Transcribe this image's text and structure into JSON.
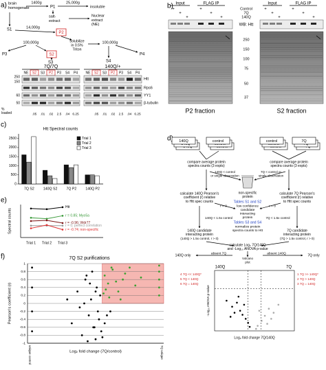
{
  "panel_a": {
    "label": "a)",
    "scheme": {
      "brain": [
        "brain",
        "homogenate"
      ],
      "spin1": "1400g",
      "p1": "P1",
      "spin2": "25,000g",
      "salt": [
        "salt-",
        "extract"
      ],
      "insoluble": "insoluble",
      "nuclear": [
        "Nuclear",
        "extract",
        "(NE)"
      ],
      "s1": "S1",
      "spin3": "14,000g",
      "p2": "P2",
      "spin4": "100,000g",
      "p3": "P3",
      "s2": "S2",
      "solubilize": [
        "solubilize",
        "in 0.5%",
        "Triton"
      ],
      "spin5": "100,000g",
      "p4": "P4",
      "s3": "S3",
      "s4": "S4"
    },
    "blot": {
      "genotypes": [
        "7Q/7Q",
        "140Q/+"
      ],
      "lanes": [
        "NE",
        "S2",
        "S3",
        "P2",
        "P3",
        "S4",
        "P4"
      ],
      "markers": [
        "250",
        "150",
        "60",
        "50"
      ],
      "proteins": [
        "Htt",
        "Rps6",
        "YY1",
        "β-tubulin"
      ],
      "loaded_label": [
        "%",
        "loaded"
      ],
      "loaded": [
        ".05",
        ".01",
        ".02",
        "2.5",
        ".04",
        "6.25"
      ]
    }
  },
  "panel_b": {
    "label": "b)",
    "input": "Input",
    "flag_ip": "FLAG IP",
    "rows": [
      "Control",
      "7Q",
      "140Q"
    ],
    "plus": "+",
    "wb": "WB: Htt",
    "markers": [
      "250",
      "150",
      "100",
      "75",
      "50",
      "37"
    ],
    "captions": [
      "P2 fraction",
      "S2 fraction"
    ]
  },
  "panel_c": {
    "label": "c)",
    "type": "bar",
    "title": "Htt Spectral counts",
    "categories": [
      "7Q S2",
      "140Q S2",
      "7Q P2",
      "140Q P2"
    ],
    "series": [
      {
        "name": "Trial 1",
        "color": "#111111",
        "values": [
          1600,
          750,
          1050,
          500
        ]
      },
      {
        "name": "Trial 2",
        "color": "#888888",
        "values": [
          1200,
          450,
          900,
          500
        ]
      },
      {
        "name": "Trial 3",
        "color": "#ffffff",
        "values": [
          2600,
          300,
          1050,
          450
        ]
      }
    ],
    "ylim": [
      0,
      2750
    ],
    "yticks": [
      0,
      500,
      1000,
      1500,
      2000,
      2500
    ]
  },
  "panel_d": {
    "label": "d)",
    "stacks": [
      "140Q",
      "control",
      "control",
      "7Q"
    ],
    "compare_left": [
      "compare average protein",
      "spectra counts (3 expts)"
    ],
    "compare_right": [
      "compare average protein",
      "spectra counts (3 expts)"
    ],
    "nonspec_left": [
      "140Q < control",
      "or single observation"
    ],
    "nonspec_right": [
      "7Q < control or",
      "single observation"
    ],
    "trash": [
      "non-specific",
      "protein"
    ],
    "pearson_left": [
      "calculate 140Q Pearson's",
      "coefficient (r) relative",
      "to Htt spec counts"
    ],
    "pearson_right": [
      "calculate 7Q Pearson's",
      "coefficient (r) relative",
      "to Htt spec counts"
    ],
    "tables_1": "Tables S1 and S2",
    "low_conf": [
      "low confidence",
      "candidate",
      "interacting",
      "protein"
    ],
    "r_left": "r < 0",
    "r_right": "r < 0",
    "fold_left": "140Q < 1.5x control",
    "fold_right": "7Q < 1.5x control",
    "tables_2": "Tables S3 and S4",
    "normalize": [
      "normalize protein",
      "spectra counts to Htt"
    ],
    "cand_left": [
      "140Q candidate",
      "interacting protein"
    ],
    "crit_left": "(140Q > 1.5x control, r > 0)",
    "cand_right": [
      "7Q candidate",
      "interacting protein"
    ],
    "crit_right": "(7Q > 1.5x control, r > 0)",
    "calc": [
      "calculate Log₂ 7Q/140Q",
      "and -Log₁₀ ANOVA p-value"
    ],
    "absent_7q": "absent 7Q",
    "absent_140q": "absent 140Q",
    "only_140q": "140Q only",
    "only_7q": "7Q only",
    "volcano_title": [
      "Volcano",
      "plot"
    ],
    "volcano": {
      "type": "scatter",
      "left_label": "140Q",
      "right_label": "7Q",
      "legend_left": [
        "4  7Q << 140Q*",
        "5  7Q < 140Q",
        "6  7Q = 140Q"
      ],
      "legend_right": [
        "1  7Q >> 140Q*",
        "2  7Q > 140Q",
        "3  7Q = 140Q"
      ],
      "xlabel": "Log₂ fold change 7Q/140Q",
      "ylabel": "-Log₁₀ ANOVA p-value",
      "xlim": [
        -5,
        5
      ],
      "ylim": [
        0,
        6
      ],
      "series": [
        {
          "color": "#000000",
          "x": [
            -3.5,
            -2.8,
            -2.2,
            -1.8,
            -1.5,
            -1.1,
            -0.8,
            -2.5,
            -1.3,
            -0.6,
            -3.0,
            -2.0
          ],
          "y": [
            3.0,
            2.4,
            2.8,
            2.0,
            1.6,
            1.2,
            0.8,
            1.8,
            2.6,
            0.4,
            1.4,
            3.4
          ]
        },
        {
          "color": "#aaaaaa",
          "x": [
            0.4,
            0.9,
            1.3,
            1.8,
            2.4,
            3.0,
            0.6,
            1.6,
            2.1,
            0.2
          ],
          "y": [
            0.5,
            1.0,
            1.5,
            2.2,
            1.8,
            2.6,
            2.0,
            0.7,
            1.2,
            0.2
          ]
        }
      ]
    }
  },
  "panel_e": {
    "label": "e)",
    "type": "line",
    "categories": [
      "Trial 1",
      "Trial 2",
      "Trial 3"
    ],
    "ylabel": "Spectral counts",
    "ylim": [
      0,
      100
    ],
    "series": [
      {
        "name": "Htt",
        "color": "#000000",
        "values": [
          88,
          86,
          92
        ]
      },
      {
        "name": "r = 0.85; Myo5a",
        "color": "#3a9a3a",
        "values": [
          60,
          57,
          66
        ]
      },
      {
        "name": "r = -0.96; Wdr77",
        "color": "#7a1010",
        "values": [
          50,
          52,
          44
        ]
      },
      {
        "name": "r = 0; perfect correlation",
        "color": "#999999",
        "values": [
          36,
          36,
          36
        ]
      },
      {
        "name": "r = -0.74; non-specific",
        "color": "#e03030",
        "values": [
          28,
          38,
          24
        ]
      }
    ]
  },
  "panel_f": {
    "label": "f)",
    "type": "scatter",
    "title": "7Q S2 purifications",
    "ylabel": "Pearson's coefficient (r)",
    "xlabel": "Log₂ fold change (7Q/control)",
    "x_left": "unique control",
    "x_right": "7Q unique",
    "xlim": [
      -6,
      6
    ],
    "ylim": [
      -1,
      1
    ],
    "yticks": [
      -1,
      -0.8,
      -0.6,
      -0.4,
      -0.2,
      0,
      0.2,
      0.4,
      0.6,
      0.8,
      1
    ],
    "highlight": {
      "color": "#f4a6a0",
      "xlim": [
        0.58,
        6
      ],
      "ylim": [
        0,
        1
      ]
    },
    "series": [
      {
        "color": "#000000",
        "x": [
          -5.6,
          -5.6,
          -5.6,
          -5.6,
          -2.1,
          -1.6,
          -1.2,
          -0.9,
          -0.6,
          -0.4,
          -0.2,
          0,
          0.1,
          0.3,
          0.4,
          -1.0,
          -0.5,
          0.2,
          0.5,
          -0.3,
          -1.4,
          0.8,
          -0.7,
          0.0,
          1.0,
          -2.5,
          -0.1,
          0.6,
          1.3,
          -0.8
        ],
        "y": [
          0.9,
          0.4,
          -0.2,
          -0.7,
          -0.5,
          0.3,
          -0.8,
          0.6,
          -0.3,
          0.1,
          -0.6,
          -0.9,
          0.4,
          -0.4,
          0.2,
          0.0,
          0.5,
          -0.2,
          -0.7,
          0.8,
          -0.1,
          -0.5,
          -0.95,
          0.3,
          -0.3,
          0.1,
          -0.6,
          -0.85,
          -0.2,
          0.7
        ]
      },
      {
        "color": "#3aa030",
        "x": [
          5.6,
          5.6,
          5.6,
          5.6,
          5.6,
          0.8,
          1.1,
          1.5,
          2.0,
          2.4,
          3.0,
          1.2,
          0.9,
          1.8,
          2.6,
          3.5,
          1.4,
          0.7,
          2.2,
          4.0
        ],
        "y": [
          0.95,
          0.8,
          0.6,
          0.4,
          0.2,
          0.7,
          0.5,
          0.85,
          0.3,
          0.6,
          0.9,
          0.15,
          0.35,
          0.55,
          0.75,
          0.45,
          0.9,
          0.25,
          0.1,
          0.65
        ]
      }
    ]
  }
}
